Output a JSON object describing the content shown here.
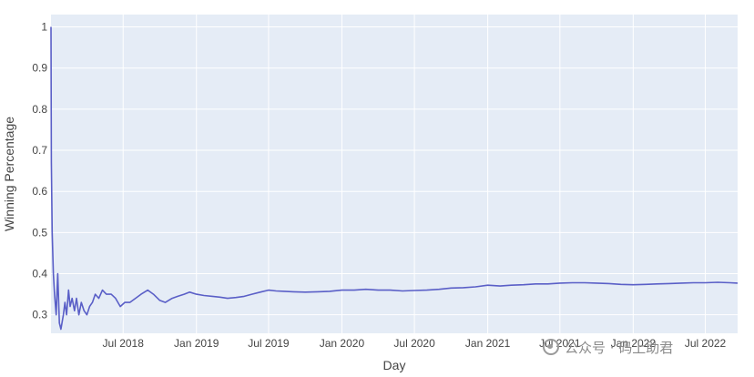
{
  "chart_data": {
    "type": "line",
    "title": "",
    "xlabel": "Day",
    "ylabel": "Winning Percentage",
    "ylim": [
      0.255,
      1.03
    ],
    "xlim": [
      "2018-01-01",
      "2022-09-20"
    ],
    "grid": true,
    "legend": "none",
    "colors": {
      "line": "#5a5fc7",
      "plot_bg": "#e5ecf6",
      "grid": "#ffffff"
    },
    "yticks": [
      {
        "value": 0.3,
        "label": "0.3"
      },
      {
        "value": 0.4,
        "label": "0.4"
      },
      {
        "value": 0.5,
        "label": "0.5"
      },
      {
        "value": 0.6,
        "label": "0.6"
      },
      {
        "value": 0.7,
        "label": "0.7"
      },
      {
        "value": 0.8,
        "label": "0.8"
      },
      {
        "value": 0.9,
        "label": "0.9"
      },
      {
        "value": 1.0,
        "label": "1"
      }
    ],
    "xticks": [
      {
        "value": "2018-07-01",
        "label": "Jul 2018"
      },
      {
        "value": "2019-01-01",
        "label": "Jan 2019"
      },
      {
        "value": "2019-07-01",
        "label": "Jul 2019"
      },
      {
        "value": "2020-01-01",
        "label": "Jan 2020"
      },
      {
        "value": "2020-07-01",
        "label": "Jul 2020"
      },
      {
        "value": "2021-01-01",
        "label": "Jan 2021"
      },
      {
        "value": "2021-07-01",
        "label": "Jul 2021"
      },
      {
        "value": "2022-01-01",
        "label": "Jan 2022"
      },
      {
        "value": "2022-07-01",
        "label": "Jul 2022"
      }
    ],
    "series": [
      {
        "x": [
          "2018-01-01",
          "2018-01-02",
          "2018-01-04",
          "2018-01-07",
          "2018-01-10",
          "2018-01-14",
          "2018-01-18",
          "2018-01-22",
          "2018-01-26",
          "2018-02-01",
          "2018-02-05",
          "2018-02-09",
          "2018-02-14",
          "2018-02-18",
          "2018-02-23",
          "2018-03-01",
          "2018-03-06",
          "2018-03-12",
          "2018-03-18",
          "2018-03-25",
          "2018-04-01",
          "2018-04-08",
          "2018-04-15",
          "2018-04-22",
          "2018-05-01",
          "2018-05-10",
          "2018-05-20",
          "2018-06-01",
          "2018-06-12",
          "2018-06-24",
          "2018-07-05",
          "2018-07-18",
          "2018-08-01",
          "2018-08-15",
          "2018-09-01",
          "2018-09-15",
          "2018-10-01",
          "2018-10-15",
          "2018-11-01",
          "2018-11-15",
          "2018-12-01",
          "2018-12-15",
          "2019-01-01",
          "2019-01-20",
          "2019-02-10",
          "2019-03-01",
          "2019-03-20",
          "2019-04-10",
          "2019-05-01",
          "2019-05-20",
          "2019-06-10",
          "2019-07-01",
          "2019-07-20",
          "2019-08-10",
          "2019-09-01",
          "2019-10-01",
          "2019-11-01",
          "2019-12-01",
          "2020-01-01",
          "2020-02-01",
          "2020-03-01",
          "2020-04-01",
          "2020-05-01",
          "2020-06-01",
          "2020-07-01",
          "2020-08-01",
          "2020-09-01",
          "2020-10-01",
          "2020-11-01",
          "2020-12-01",
          "2021-01-01",
          "2021-02-01",
          "2021-03-01",
          "2021-04-01",
          "2021-05-01",
          "2021-06-01",
          "2021-07-01",
          "2021-08-01",
          "2021-09-01",
          "2021-10-01",
          "2021-11-01",
          "2021-12-01",
          "2022-01-01",
          "2022-02-01",
          "2022-03-01",
          "2022-04-01",
          "2022-05-01",
          "2022-06-01",
          "2022-07-01",
          "2022-08-01",
          "2022-09-01",
          "2022-09-20"
        ],
        "y": [
          1.0,
          0.67,
          0.5,
          0.4,
          0.35,
          0.3,
          0.4,
          0.28,
          0.265,
          0.3,
          0.33,
          0.3,
          0.36,
          0.32,
          0.34,
          0.31,
          0.34,
          0.3,
          0.33,
          0.31,
          0.3,
          0.32,
          0.33,
          0.35,
          0.34,
          0.36,
          0.35,
          0.35,
          0.34,
          0.32,
          0.33,
          0.33,
          0.34,
          0.35,
          0.36,
          0.35,
          0.335,
          0.33,
          0.34,
          0.345,
          0.35,
          0.355,
          0.35,
          0.347,
          0.345,
          0.343,
          0.34,
          0.342,
          0.345,
          0.35,
          0.355,
          0.36,
          0.358,
          0.357,
          0.356,
          0.355,
          0.356,
          0.357,
          0.36,
          0.36,
          0.362,
          0.36,
          0.36,
          0.358,
          0.359,
          0.36,
          0.362,
          0.365,
          0.366,
          0.368,
          0.372,
          0.37,
          0.372,
          0.373,
          0.375,
          0.375,
          0.377,
          0.378,
          0.378,
          0.377,
          0.376,
          0.374,
          0.373,
          0.374,
          0.375,
          0.376,
          0.377,
          0.378,
          0.378,
          0.379,
          0.378,
          0.377
        ]
      }
    ]
  },
  "watermark": {
    "text": "公众号 · 码上助君",
    "icon": "wechat-icon"
  }
}
